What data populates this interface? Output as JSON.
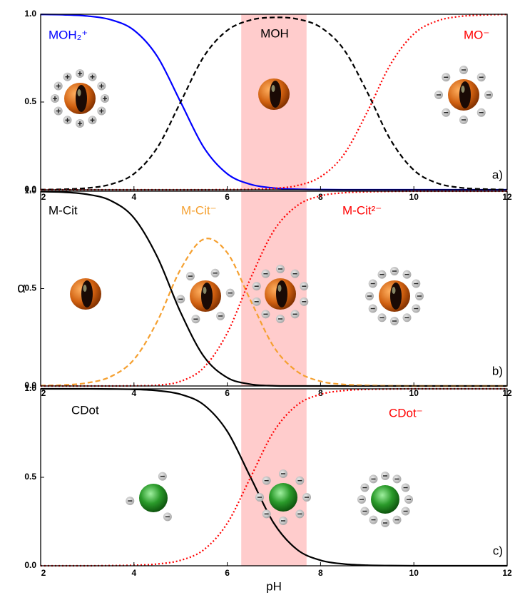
{
  "chart_data": [
    {
      "type": "line",
      "annotation": "a)",
      "x": [
        2,
        2.5,
        3,
        3.5,
        4,
        4.5,
        5,
        5.5,
        6,
        6.5,
        7,
        7.5,
        8,
        8.5,
        9,
        9.5,
        10,
        10.5,
        11,
        11.5,
        12
      ],
      "series": [
        {
          "name": "MOH₂⁺",
          "color": "#0000ff",
          "style": "solid",
          "values": [
            0.999,
            0.997,
            0.99,
            0.969,
            0.909,
            0.76,
            0.5,
            0.24,
            0.091,
            0.031,
            0.01,
            0.003,
            0.001,
            0,
            0,
            0,
            0,
            0,
            0,
            0,
            0
          ]
        },
        {
          "name": "MOH",
          "color": "#000000",
          "style": "dashed",
          "values": [
            0.001,
            0.003,
            0.01,
            0.031,
            0.091,
            0.24,
            0.5,
            0.76,
            0.908,
            0.967,
            0.982,
            0.973,
            0.926,
            0.799,
            0.557,
            0.285,
            0.112,
            0.038,
            0.012,
            0.004,
            0.001
          ]
        },
        {
          "name": "MO⁻",
          "color": "#ff0000",
          "style": "dotted",
          "values": [
            0,
            0,
            0,
            0,
            0,
            0,
            0,
            0,
            0.001,
            0.002,
            0.008,
            0.024,
            0.074,
            0.201,
            0.443,
            0.715,
            0.888,
            0.962,
            0.988,
            0.996,
            0.999
          ]
        }
      ],
      "highlight_x": [
        6.3,
        7.7
      ],
      "xlim": [
        2,
        12
      ],
      "xticks": [
        2,
        4,
        6,
        8,
        10,
        12
      ],
      "ylim": [
        0,
        1
      ],
      "yticks": [
        {
          "value": 0,
          "label": "0.0"
        },
        {
          "value": 0.5,
          "label": "0.5"
        },
        {
          "value": 1,
          "label": "1.0"
        }
      ]
    },
    {
      "type": "line",
      "annotation": "b)",
      "ylabel": "α",
      "x": [
        2,
        2.5,
        3,
        3.5,
        4,
        4.5,
        5,
        5.5,
        6,
        6.5,
        7,
        7.5,
        8,
        8.5,
        9,
        9.5,
        10,
        10.5,
        11,
        11.5,
        12
      ],
      "series": [
        {
          "name": "M-Cit",
          "color": "#000000",
          "style": "solid",
          "values": [
            0.998,
            0.995,
            0.984,
            0.952,
            0.863,
            0.663,
            0.378,
            0.151,
            0.043,
            0.009,
            0.001,
            0,
            0,
            0,
            0,
            0,
            0,
            0,
            0,
            0,
            0
          ]
        },
        {
          "name": "M-Cit⁻",
          "color": "#f5a030",
          "style": "dashed",
          "values": [
            0.002,
            0.005,
            0.016,
            0.048,
            0.136,
            0.332,
            0.599,
            0.754,
            0.684,
            0.439,
            0.2,
            0.074,
            0.024,
            0.008,
            0.003,
            0.001,
            0,
            0,
            0,
            0,
            0
          ]
        },
        {
          "name": "M-Cit²⁻",
          "color": "#ff0000",
          "style": "dotted",
          "values": [
            0,
            0,
            0,
            0,
            0.001,
            0.004,
            0.024,
            0.095,
            0.272,
            0.553,
            0.798,
            0.926,
            0.976,
            0.992,
            0.997,
            0.999,
            1,
            1,
            1,
            1,
            1
          ]
        }
      ],
      "highlight_x": [
        6.3,
        7.7
      ],
      "xlim": [
        2,
        12
      ],
      "xticks": [
        2,
        4,
        6,
        8,
        10,
        12
      ],
      "ylim": [
        0,
        1
      ],
      "yticks": [
        {
          "value": 0,
          "label": "0.0"
        },
        {
          "value": 0.5,
          "label": "0.5"
        },
        {
          "value": 1,
          "label": "1.0"
        }
      ]
    },
    {
      "type": "line",
      "annotation": "c)",
      "xlabel": "pH",
      "x": [
        2,
        2.5,
        3,
        3.5,
        4,
        4.5,
        5,
        5.5,
        6,
        6.5,
        7,
        7.5,
        8,
        8.5,
        9,
        9.5,
        10,
        10.5,
        11,
        11.5,
        12
      ],
      "series": [
        {
          "name": "CDot",
          "color": "#000000",
          "style": "solid",
          "values": [
            1,
            1,
            1,
            0.999,
            0.997,
            0.99,
            0.969,
            0.909,
            0.76,
            0.5,
            0.24,
            0.091,
            0.031,
            0.01,
            0.003,
            0.001,
            0,
            0,
            0,
            0,
            0
          ]
        },
        {
          "name": "CDot⁻",
          "color": "#ff0000",
          "style": "dotted",
          "values": [
            0,
            0,
            0,
            0.001,
            0.003,
            0.01,
            0.031,
            0.091,
            0.24,
            0.5,
            0.76,
            0.909,
            0.969,
            0.99,
            0.997,
            0.999,
            1,
            1,
            1,
            1,
            1
          ]
        }
      ],
      "highlight_x": [
        6.3,
        7.7
      ],
      "xlim": [
        2,
        12
      ],
      "xticks": [
        2,
        4,
        6,
        8,
        10,
        12
      ],
      "ylim": [
        0,
        1
      ],
      "yticks": [
        {
          "value": 0,
          "label": "0.0"
        },
        {
          "value": 0.5,
          "label": "0.5"
        },
        {
          "value": 1,
          "label": "1.0"
        }
      ]
    }
  ]
}
